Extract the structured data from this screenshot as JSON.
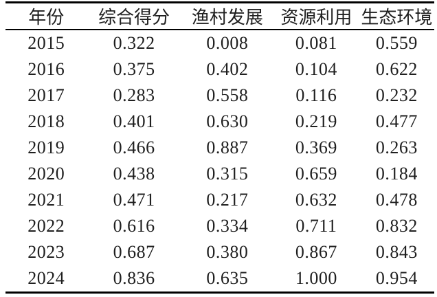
{
  "chart_data": {
    "type": "table",
    "title": "",
    "columns": [
      "年份",
      "综合得分",
      "渔村发展",
      "资源利用",
      "生态环境"
    ],
    "rows": [
      [
        "2015",
        "0.322",
        "0.008",
        "0.081",
        "0.559"
      ],
      [
        "2016",
        "0.375",
        "0.402",
        "0.104",
        "0.622"
      ],
      [
        "2017",
        "0.283",
        "0.558",
        "0.116",
        "0.232"
      ],
      [
        "2018",
        "0.401",
        "0.630",
        "0.219",
        "0.477"
      ],
      [
        "2019",
        "0.466",
        "0.887",
        "0.369",
        "0.263"
      ],
      [
        "2020",
        "0.438",
        "0.315",
        "0.659",
        "0.184"
      ],
      [
        "2021",
        "0.471",
        "0.217",
        "0.632",
        "0.478"
      ],
      [
        "2022",
        "0.616",
        "0.334",
        "0.711",
        "0.832"
      ],
      [
        "2023",
        "0.687",
        "0.380",
        "0.867",
        "0.843"
      ],
      [
        "2024",
        "0.836",
        "0.635",
        "1.000",
        "0.954"
      ]
    ],
    "layout": {
      "style": "three-line-table",
      "top_rule": "thick",
      "header_rule": "thin",
      "bottom_rule": "thick"
    }
  },
  "colors": {
    "text": "#1f1f1f",
    "rule": "#000000",
    "background": "#ffffff"
  }
}
